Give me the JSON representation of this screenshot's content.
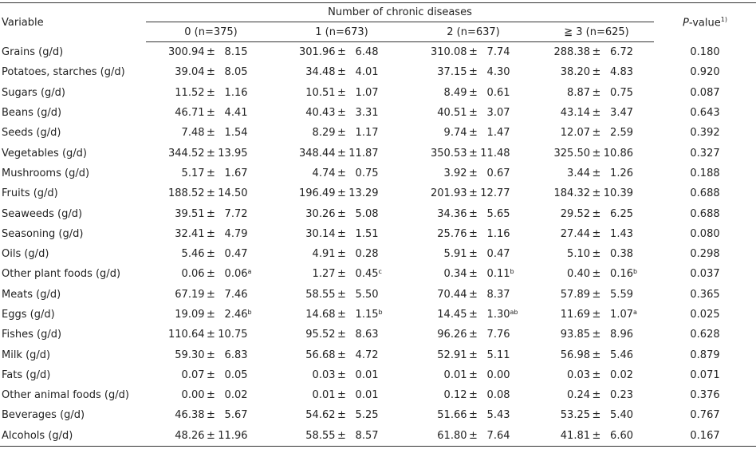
{
  "table": {
    "header": {
      "variable": "Variable",
      "group": "Number of chronic diseases",
      "p_italic": "P",
      "p_rest": "-value",
      "p_note": "1)",
      "columns": [
        "0 (n=375)",
        "1 (n=673)",
        "2 (n=637)",
        "≧ 3 (n=625)"
      ]
    },
    "separator": "±",
    "rows": [
      [
        "Grains (g/d)",
        [
          "300.94",
          "8.15"
        ],
        [
          "301.96",
          "6.48"
        ],
        [
          "310.08",
          "7.74"
        ],
        [
          "288.38",
          "6.72"
        ],
        "0.180"
      ],
      [
        "Potatoes, starches (g/d)",
        [
          "39.04",
          "8.05"
        ],
        [
          "34.48",
          "4.01"
        ],
        [
          "37.15",
          "4.30"
        ],
        [
          "38.20",
          "4.83"
        ],
        "0.920"
      ],
      [
        "Sugars (g/d)",
        [
          "11.52",
          "1.16"
        ],
        [
          "10.51",
          "1.07"
        ],
        [
          "8.49",
          "0.61"
        ],
        [
          "8.87",
          "0.75"
        ],
        "0.087"
      ],
      [
        "Beans (g/d)",
        [
          "46.71",
          "4.41"
        ],
        [
          "40.43",
          "3.31"
        ],
        [
          "40.51",
          "3.07"
        ],
        [
          "43.14",
          "3.47"
        ],
        "0.643"
      ],
      [
        "Seeds (g/d)",
        [
          "7.48",
          "1.54"
        ],
        [
          "8.29",
          "1.17"
        ],
        [
          "9.74",
          "1.47"
        ],
        [
          "12.07",
          "2.59"
        ],
        "0.392"
      ],
      [
        "Vegetables (g/d)",
        [
          "344.52",
          "13.95"
        ],
        [
          "348.44",
          "11.87"
        ],
        [
          "350.53",
          "11.48"
        ],
        [
          "325.50",
          "10.86"
        ],
        "0.327"
      ],
      [
        "Mushrooms (g/d)",
        [
          "5.17",
          "1.67"
        ],
        [
          "4.74",
          "0.75"
        ],
        [
          "3.92",
          "0.67"
        ],
        [
          "3.44",
          "1.26"
        ],
        "0.188"
      ],
      [
        "Fruits (g/d)",
        [
          "188.52",
          "14.50"
        ],
        [
          "196.49",
          "13.29"
        ],
        [
          "201.93",
          "12.77"
        ],
        [
          "184.32",
          "10.39"
        ],
        "0.688"
      ],
      [
        "Seaweeds (g/d)",
        [
          "39.51",
          "7.72"
        ],
        [
          "30.26",
          "5.08"
        ],
        [
          "34.36",
          "5.65"
        ],
        [
          "29.52",
          "6.25"
        ],
        "0.688"
      ],
      [
        "Seasoning (g/d)",
        [
          "32.41",
          "4.79"
        ],
        [
          "30.14",
          "1.51"
        ],
        [
          "25.76",
          "1.16"
        ],
        [
          "27.44",
          "1.43"
        ],
        "0.080"
      ],
      [
        "Oils (g/d)",
        [
          "5.46",
          "0.47"
        ],
        [
          "4.91",
          "0.28"
        ],
        [
          "5.91",
          "0.47"
        ],
        [
          "5.10",
          "0.38"
        ],
        "0.298"
      ],
      [
        "Other plant foods (g/d)",
        [
          "0.06",
          "0.06",
          "a"
        ],
        [
          "1.27",
          "0.45",
          "c"
        ],
        [
          "0.34",
          "0.11",
          "b"
        ],
        [
          "0.40",
          "0.16",
          "b"
        ],
        "0.037"
      ],
      [
        "Meats (g/d)",
        [
          "67.19",
          "7.46"
        ],
        [
          "58.55",
          "5.50"
        ],
        [
          "70.44",
          "8.37"
        ],
        [
          "57.89",
          "5.59"
        ],
        "0.365"
      ],
      [
        "Eggs (g/d)",
        [
          "19.09",
          "2.46",
          "b"
        ],
        [
          "14.68",
          "1.15",
          "b"
        ],
        [
          "14.45",
          "1.30",
          "ab"
        ],
        [
          "11.69",
          "1.07",
          "a"
        ],
        "0.025"
      ],
      [
        "Fishes (g/d)",
        [
          "110.64",
          "10.75"
        ],
        [
          "95.52",
          "8.63"
        ],
        [
          "96.26",
          "7.76"
        ],
        [
          "93.85",
          "8.96"
        ],
        "0.628"
      ],
      [
        "Milk (g/d)",
        [
          "59.30",
          "6.83"
        ],
        [
          "56.68",
          "4.72"
        ],
        [
          "52.91",
          "5.11"
        ],
        [
          "56.98",
          "5.46"
        ],
        "0.879"
      ],
      [
        "Fats (g/d)",
        [
          "0.07",
          "0.05"
        ],
        [
          "0.03",
          "0.01"
        ],
        [
          "0.01",
          "0.00"
        ],
        [
          "0.03",
          "0.02"
        ],
        "0.071"
      ],
      [
        "Other animal foods (g/d)",
        [
          "0.00",
          "0.02"
        ],
        [
          "0.01",
          "0.01"
        ],
        [
          "0.12",
          "0.08"
        ],
        [
          "0.24",
          "0.23"
        ],
        "0.376"
      ],
      [
        "Beverages (g/d)",
        [
          "46.38",
          "5.67"
        ],
        [
          "54.62",
          "5.25"
        ],
        [
          "51.66",
          "5.43"
        ],
        [
          "53.25",
          "5.40"
        ],
        "0.767"
      ],
      [
        "Alcohols (g/d)",
        [
          "48.26",
          "11.96"
        ],
        [
          "58.55",
          "8.57"
        ],
        [
          "61.80",
          "7.64"
        ],
        [
          "41.81",
          "6.60"
        ],
        "0.167"
      ]
    ]
  }
}
